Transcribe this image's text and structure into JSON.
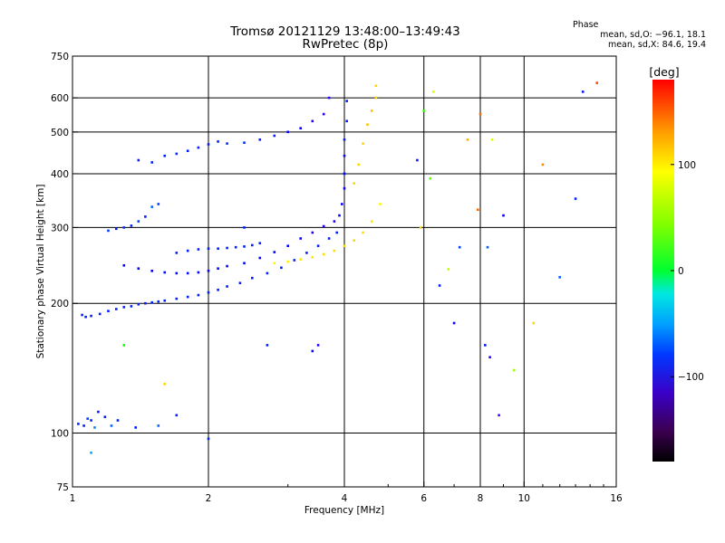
{
  "header": {
    "title_line1": "Tromsø 20121129 13:48:00–13:49:43",
    "title_line2": "RwPretec (8p)",
    "phase_label": "Phase",
    "stat_o": "mean, sd,O: −96.1, 18.1",
    "stat_x": "mean, sd,X:  84.6, 19.4"
  },
  "colorbar": {
    "label": "[deg]",
    "range": [
      -180,
      180
    ],
    "ticks": [
      100,
      0,
      -100
    ],
    "tick_labels": [
      "100",
      "0",
      "−100"
    ]
  },
  "chart_data": {
    "type": "scatter",
    "xlabel": "Frequency [MHz]",
    "ylabel": "Stationary phase Virtual Height [km]",
    "xscale": "log",
    "yscale": "log",
    "xlim": [
      1,
      16
    ],
    "ylim": [
      75,
      750
    ],
    "x_ticks": [
      1,
      2,
      4,
      6,
      8,
      10,
      16
    ],
    "y_ticks": [
      75,
      100,
      200,
      300,
      400,
      500,
      600,
      750
    ],
    "x_grid": [
      2,
      4,
      6,
      8,
      10
    ],
    "y_grid": [
      100,
      200,
      300,
      400,
      500,
      600
    ],
    "grid": true,
    "color_by": "phase_deg",
    "series": [
      {
        "x": [
          1.05,
          1.07,
          1.1,
          1.15,
          1.2,
          1.25,
          1.3,
          1.35,
          1.4,
          1.45,
          1.5,
          1.55,
          1.6,
          1.7,
          1.8,
          1.9,
          2.0,
          2.1,
          2.2,
          2.35,
          2.5,
          2.7,
          2.9,
          3.1,
          3.3,
          3.5,
          3.7,
          3.85
        ],
        "y": [
          188,
          186,
          187,
          189,
          192,
          194,
          196,
          197,
          199,
          200,
          201,
          202,
          203,
          205,
          207,
          209,
          212,
          215,
          219,
          223,
          229,
          235,
          242,
          252,
          262,
          272,
          283,
          292
        ],
        "phase": [
          -100,
          -100,
          -100,
          -100,
          -100,
          -100,
          -100,
          -100,
          -100,
          -100,
          -100,
          -100,
          -100,
          -100,
          -100,
          -100,
          -100,
          -100,
          -100,
          -100,
          -100,
          -100,
          -100,
          -100,
          -100,
          -100,
          -100,
          -100
        ]
      },
      {
        "x": [
          1.3,
          1.4,
          1.5,
          1.6,
          1.7,
          1.8,
          1.9,
          2.0,
          2.1,
          2.2,
          2.4,
          2.6,
          2.8,
          3.0,
          3.2,
          3.4,
          3.6,
          3.8
        ],
        "y": [
          245,
          241,
          238,
          236,
          235,
          235,
          236,
          238,
          241,
          244,
          248,
          255,
          263,
          272,
          283,
          292,
          302,
          310
        ],
        "phase": [
          -110,
          -110,
          -110,
          -105,
          -105,
          -105,
          -105,
          -105,
          -105,
          -105,
          -105,
          -110,
          -110,
          -110,
          -110,
          -115,
          -115,
          -120
        ]
      },
      {
        "x": [
          1.7,
          1.8,
          1.9,
          2.0,
          2.1,
          2.2,
          2.3,
          2.4,
          2.5,
          2.6
        ],
        "y": [
          262,
          265,
          267,
          268,
          268,
          269,
          270,
          271,
          273,
          276
        ],
        "phase": [
          -100,
          -100,
          -100,
          -100,
          -100,
          -100,
          -100,
          -100,
          -100,
          -100
        ]
      },
      {
        "x": [
          2.8,
          3.0,
          3.2,
          3.4,
          3.6,
          3.8,
          4.0,
          4.2,
          4.4,
          4.6,
          4.8
        ],
        "y": [
          248,
          250,
          253,
          256,
          260,
          265,
          272,
          280,
          292,
          310,
          340
        ],
        "phase": [
          110,
          112,
          115,
          115,
          118,
          118,
          120,
          120,
          118,
          115,
          110
        ]
      },
      {
        "x": [
          3.9,
          3.95,
          4.0,
          4.0,
          4.0,
          4.0,
          4.05,
          4.05
        ],
        "y": [
          320,
          340,
          370,
          400,
          440,
          480,
          530,
          590
        ],
        "phase": [
          -110,
          -110,
          -110,
          -105,
          -105,
          -100,
          -100,
          -100
        ]
      },
      {
        "x": [
          4.2,
          4.3,
          4.4,
          4.5,
          4.6,
          4.7,
          4.7
        ],
        "y": [
          380,
          420,
          470,
          520,
          560,
          600,
          640
        ],
        "phase": [
          120,
          120,
          120,
          125,
          125,
          120,
          120
        ]
      },
      {
        "x": [
          1.4,
          1.5,
          1.6,
          1.7,
          1.8,
          1.9,
          2.0,
          2.1,
          2.2,
          2.4,
          2.6,
          2.8,
          3.0,
          3.2,
          3.4,
          3.6,
          3.7
        ],
        "y": [
          430,
          425,
          440,
          445,
          452,
          460,
          468,
          475,
          470,
          472,
          480,
          490,
          500,
          510,
          530,
          550,
          600
        ],
        "phase": [
          -100,
          -100,
          -100,
          -95,
          -100,
          -100,
          -100,
          -100,
          -95,
          -95,
          -100,
          -100,
          -110,
          -110,
          -115,
          -120,
          -120
        ]
      },
      {
        "x": [
          1.03,
          1.06,
          1.08,
          1.1,
          1.12,
          1.14,
          1.18,
          1.22,
          1.26,
          1.38,
          1.55
        ],
        "y": [
          105,
          104,
          108,
          107,
          103,
          112,
          109,
          104,
          107,
          103,
          104
        ],
        "phase": [
          -100,
          -100,
          -90,
          -100,
          -70,
          -100,
          -100,
          -80,
          -100,
          -100,
          -80
        ]
      },
      {
        "x": [
          1.2,
          1.25,
          1.3,
          1.35,
          1.4,
          1.45,
          1.5,
          1.55
        ],
        "y": [
          295,
          298,
          300,
          303,
          310,
          318,
          335,
          340
        ],
        "phase": [
          -90,
          -100,
          -95,
          -100,
          -90,
          -100,
          -80,
          -90
        ]
      },
      {
        "x": [
          5.8,
          6.0,
          6.3,
          6.5,
          7.0,
          7.5,
          8.0,
          8.2,
          8.5,
          9.0,
          10.5,
          12.0,
          13.5,
          14.5,
          6.8,
          7.9,
          8.4,
          5.9,
          7.2,
          9.5,
          11.0,
          13.0,
          6.2,
          8.3
        ],
        "y": [
          430,
          560,
          620,
          220,
          180,
          480,
          550,
          160,
          480,
          320,
          180,
          230,
          620,
          650,
          240,
          330,
          150,
          300,
          270,
          140,
          420,
          350,
          390,
          270
        ],
        "phase": [
          -100,
          50,
          100,
          -100,
          -110,
          130,
          150,
          -100,
          100,
          -110,
          120,
          -80,
          -100,
          160,
          90,
          150,
          -120,
          120,
          -90,
          80,
          140,
          -100,
          60,
          -80
        ]
      },
      {
        "x": [
          1.1,
          1.3,
          1.6,
          2.7,
          3.4,
          2.4,
          8.8,
          1.7,
          3.5,
          2.0
        ],
        "y": [
          90,
          160,
          130,
          160,
          155,
          300,
          110,
          110,
          160,
          97
        ],
        "phase": [
          -60,
          40,
          120,
          -100,
          -110,
          -100,
          -130,
          -100,
          -120,
          -100
        ]
      }
    ]
  }
}
